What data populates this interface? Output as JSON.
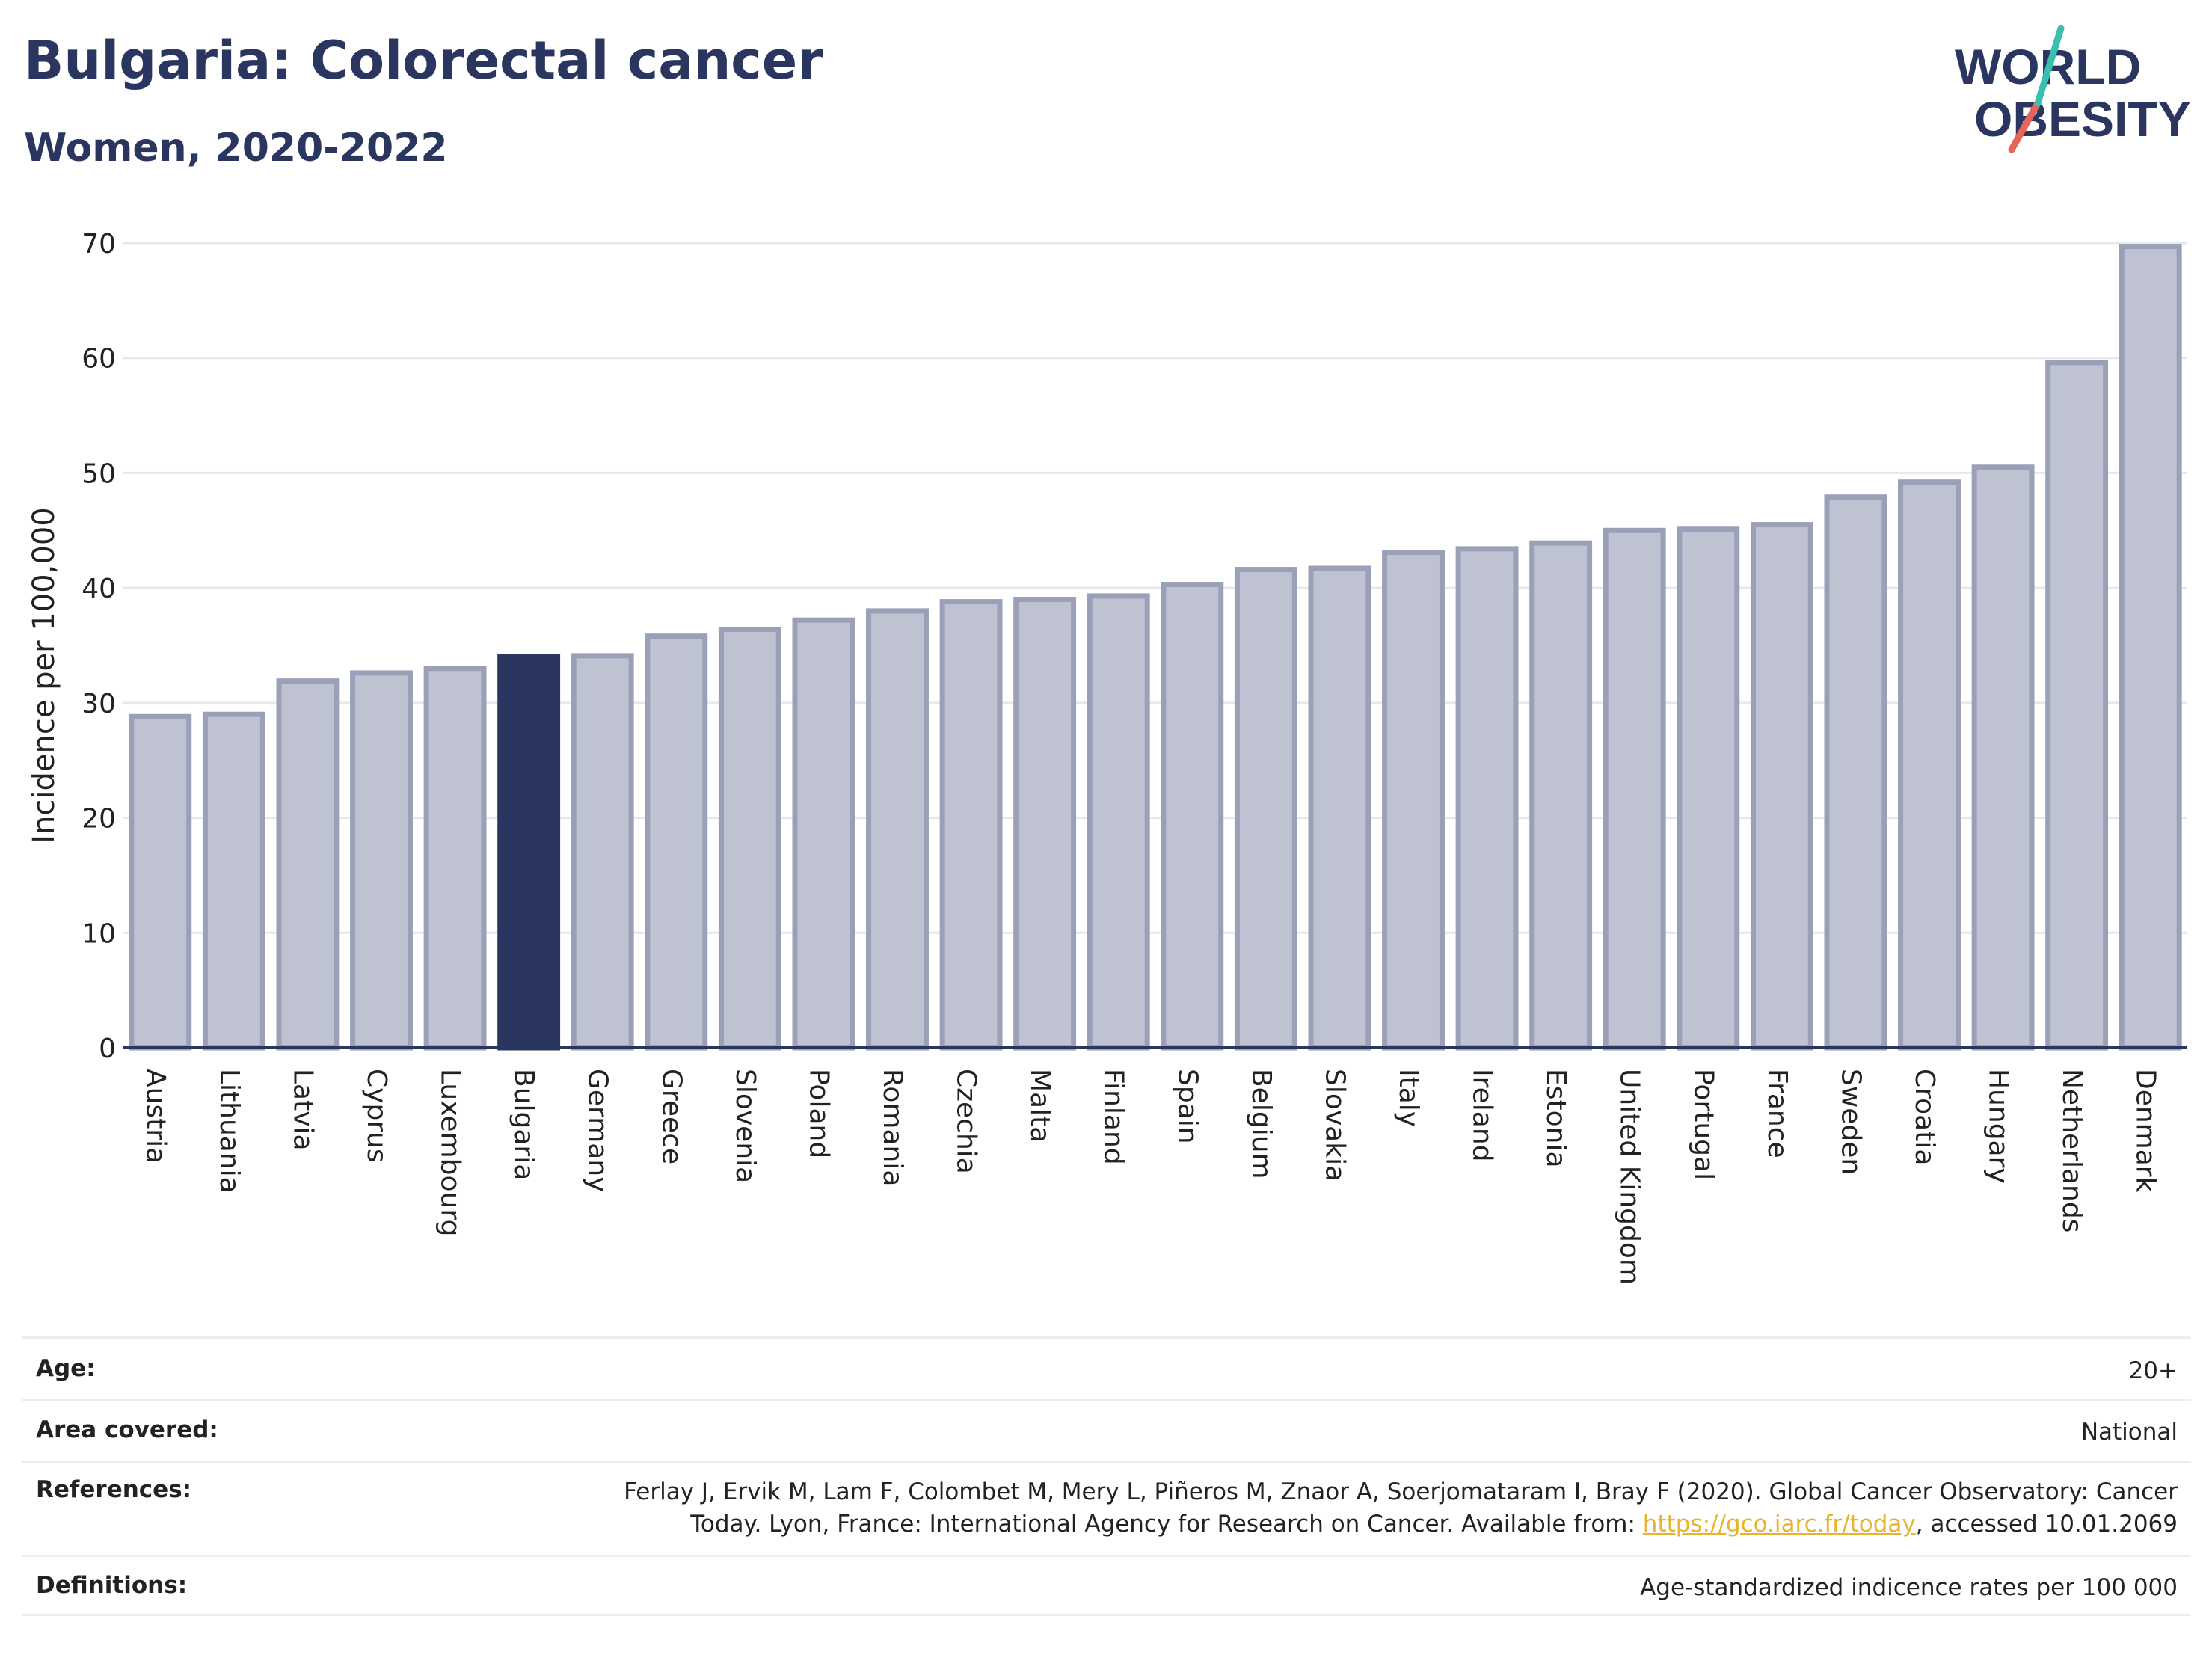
{
  "header": {
    "title": "Bulgaria: Colorectal cancer",
    "subtitle": "Women, 2020-2022"
  },
  "logo": {
    "line1": "WORLD",
    "line2": "OBESITY"
  },
  "colors": {
    "bar_default_fill": "#bfc2d0",
    "bar_default_stroke": "#9aa0b8",
    "bar_highlight": "#2b3660",
    "accent_teal": "#3bbfb0",
    "accent_red": "#e8645a",
    "link": "#e8b32e"
  },
  "chart_data": {
    "type": "bar",
    "ylabel": "Incidence per 100,000",
    "xlabel": "",
    "ylim": [
      0,
      70
    ],
    "yticks": [
      0,
      10,
      20,
      30,
      40,
      50,
      60,
      70
    ],
    "grid": true,
    "highlight": "Bulgaria",
    "categories": [
      "Austria",
      "Lithuania",
      "Latvia",
      "Cyprus",
      "Luxembourg",
      "Bulgaria",
      "Germany",
      "Greece",
      "Slovenia",
      "Poland",
      "Romania",
      "Czechia",
      "Malta",
      "Finland",
      "Spain",
      "Belgium",
      "Slovakia",
      "Italy",
      "Ireland",
      "Estonia",
      "United Kingdom",
      "Portugal",
      "France",
      "Sweden",
      "Croatia",
      "Hungary",
      "Netherlands",
      "Denmark"
    ],
    "values": [
      28.8,
      29.0,
      31.9,
      32.6,
      33.0,
      34.0,
      34.1,
      35.8,
      36.4,
      37.2,
      38.0,
      38.8,
      39.0,
      39.3,
      40.3,
      41.6,
      41.7,
      43.1,
      43.4,
      43.9,
      45.0,
      45.1,
      45.5,
      47.9,
      49.2,
      50.5,
      59.6,
      69.7
    ]
  },
  "info": {
    "age_label": "Age:",
    "age_value": "20+",
    "area_label": "Area covered:",
    "area_value": "National",
    "references_label": "References:",
    "references_line1": "Ferlay J, Ervik M, Lam F, Colombet M, Mery L, Piñeros M, Znaor A, Soerjomataram I, Bray F (2020). Global Cancer Observatory: Cancer",
    "references_line2_pre": "Today. Lyon, France: International Agency for Research on Cancer. Available from: ",
    "references_link": "https://gco.iarc.fr/today",
    "references_line2_post": ", accessed 10.01.2069",
    "definitions_label": "Definitions:",
    "definitions_value": "Age-standardized indicence rates per 100 000"
  }
}
